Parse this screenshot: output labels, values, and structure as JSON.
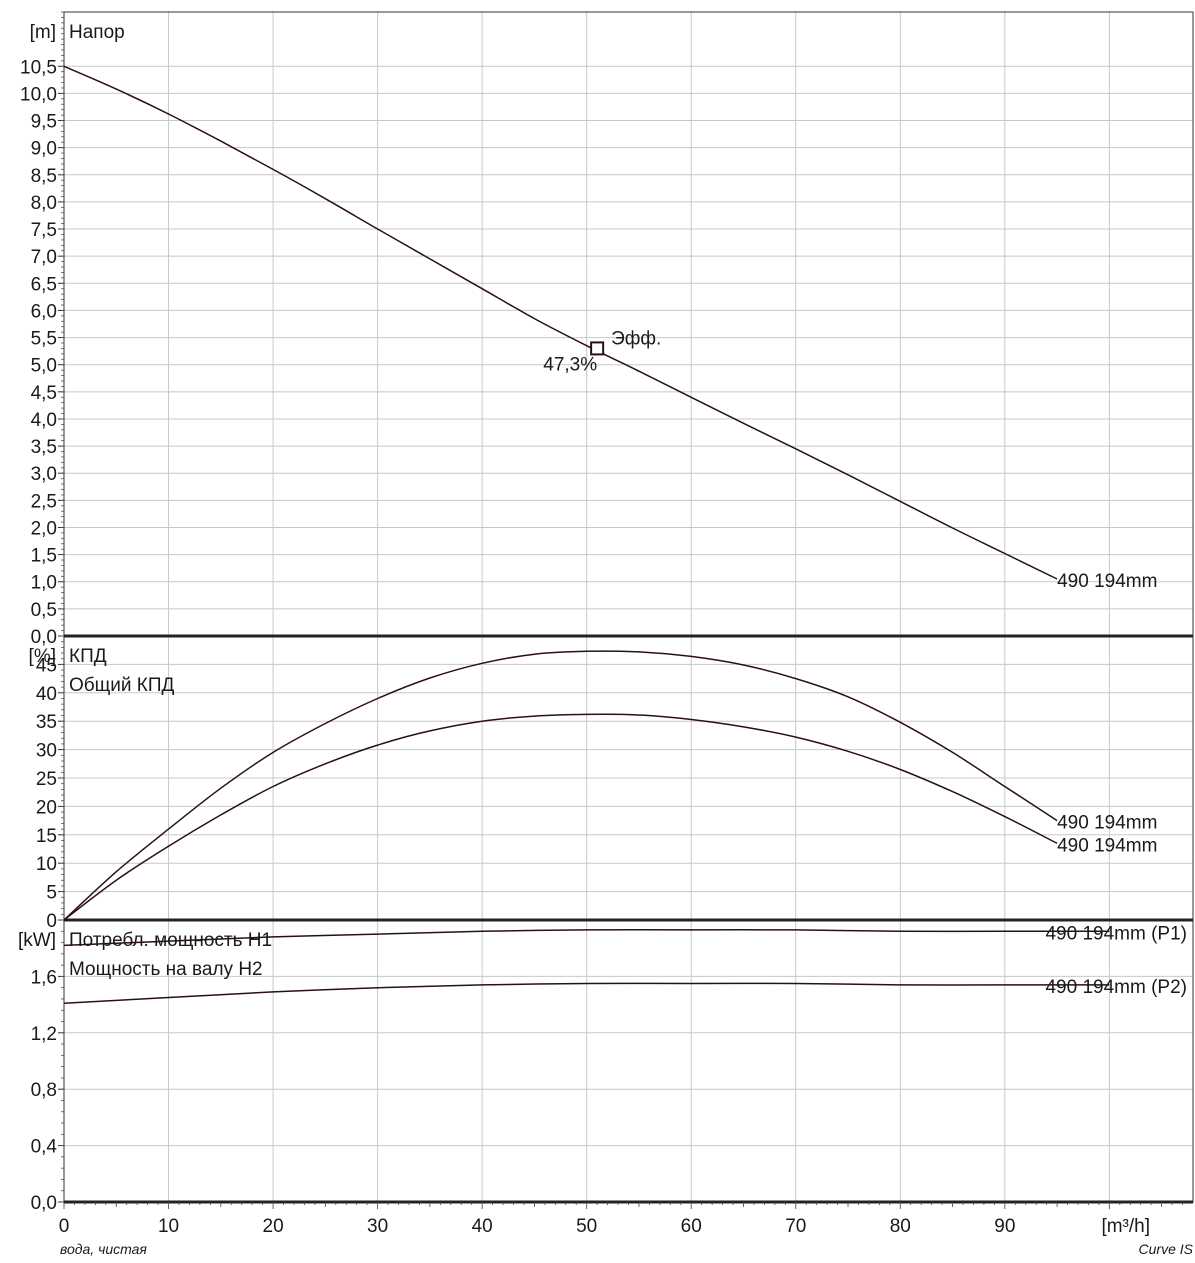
{
  "footer": {
    "left": "вода, чистая",
    "right": "Curve IS"
  },
  "chart_data": [
    {
      "type": "line",
      "panel": "head",
      "unit": "[m]",
      "legend": [
        "Напор"
      ],
      "xlim": [
        0,
        108
      ],
      "ylim": [
        0,
        11.5
      ],
      "yticks": [
        0.0,
        0.5,
        1.0,
        1.5,
        2.0,
        2.5,
        3.0,
        3.5,
        4.0,
        4.5,
        5.0,
        5.5,
        6.0,
        6.5,
        7.0,
        7.5,
        8.0,
        8.5,
        9.0,
        9.5,
        10.0,
        10.5
      ],
      "ytick_labels": [
        "0,0",
        "0,5",
        "1,0",
        "1,5",
        "2,0",
        "2,5",
        "3,0",
        "3,5",
        "4,0",
        "4,5",
        "5,0",
        "5,5",
        "6,0",
        "6,5",
        "7,0",
        "7,5",
        "8,0",
        "8,5",
        "9,0",
        "9,5",
        "10,0",
        "10,5"
      ],
      "series": [
        {
          "name": "490 194mm",
          "x": [
            0,
            5,
            10,
            15,
            20,
            25,
            30,
            35,
            40,
            45,
            50,
            55,
            60,
            65,
            70,
            75,
            80,
            85,
            90,
            95
          ],
          "y": [
            10.5,
            10.08,
            9.62,
            9.12,
            8.6,
            8.06,
            7.5,
            6.95,
            6.4,
            5.85,
            5.35,
            4.88,
            4.4,
            3.92,
            3.45,
            2.97,
            2.48,
            1.99,
            1.52,
            1.05
          ]
        }
      ],
      "marker": {
        "x": 51,
        "y": 5.3,
        "label": "Эфф.",
        "value_label": "47,3%"
      }
    },
    {
      "type": "line",
      "panel": "efficiency",
      "unit": "[%]",
      "legend": [
        "КПД",
        "Общий КПД"
      ],
      "xlim": [
        0,
        108
      ],
      "ylim": [
        0,
        50
      ],
      "yticks": [
        0,
        5,
        10,
        15,
        20,
        25,
        30,
        35,
        40,
        45
      ],
      "ytick_labels": [
        "0",
        "5",
        "10",
        "15",
        "20",
        "25",
        "30",
        "35",
        "40",
        "45"
      ],
      "series": [
        {
          "name": "490 194mm",
          "x": [
            0,
            5,
            10,
            15,
            20,
            25,
            30,
            35,
            40,
            45,
            50,
            55,
            60,
            65,
            70,
            75,
            80,
            85,
            90,
            95
          ],
          "y": [
            0,
            8.5,
            16,
            23.2,
            29.5,
            34.6,
            39,
            42.6,
            45.2,
            46.8,
            47.3,
            47.2,
            46.4,
            44.9,
            42.5,
            39.3,
            34.8,
            29.5,
            23.5,
            17.5
          ]
        },
        {
          "name": "490 194mm",
          "x": [
            0,
            5,
            10,
            15,
            20,
            25,
            30,
            35,
            40,
            45,
            50,
            55,
            60,
            65,
            70,
            75,
            80,
            85,
            90,
            95
          ],
          "y": [
            0,
            7,
            13,
            18.5,
            23.5,
            27.5,
            30.8,
            33.3,
            35,
            35.9,
            36.2,
            36.1,
            35.3,
            34,
            32.2,
            29.7,
            26.5,
            22.6,
            18.2,
            13.5
          ]
        }
      ]
    },
    {
      "type": "line",
      "panel": "power",
      "unit": "[kW]",
      "legend": [
        "Потребл. мощность Н1",
        "Мощность на валу Н2"
      ],
      "xlim": [
        0,
        108
      ],
      "ylim": [
        0,
        2.0
      ],
      "yticks": [
        0.0,
        0.4,
        0.8,
        1.2,
        1.6
      ],
      "ytick_labels": [
        "0,0",
        "0,4",
        "0,8",
        "1,2",
        "1,6"
      ],
      "series": [
        {
          "name": "490 194mm (P1)",
          "x": [
            0,
            10,
            20,
            30,
            40,
            50,
            60,
            70,
            80,
            90,
            100
          ],
          "y": [
            1.82,
            1.85,
            1.88,
            1.9,
            1.92,
            1.93,
            1.93,
            1.93,
            1.92,
            1.92,
            1.92
          ]
        },
        {
          "name": "490 194mm (P2)",
          "x": [
            0,
            10,
            20,
            30,
            40,
            50,
            60,
            70,
            80,
            90,
            100
          ],
          "y": [
            1.41,
            1.45,
            1.49,
            1.52,
            1.54,
            1.55,
            1.55,
            1.55,
            1.54,
            1.54,
            1.54
          ]
        }
      ]
    }
  ],
  "x_axis": {
    "ticks": [
      0,
      10,
      20,
      30,
      40,
      50,
      60,
      70,
      80,
      90
    ],
    "tick_labels": [
      "0",
      "10",
      "20",
      "30",
      "40",
      "50",
      "60",
      "70",
      "80",
      "90"
    ],
    "unit": "[m³/h]"
  }
}
